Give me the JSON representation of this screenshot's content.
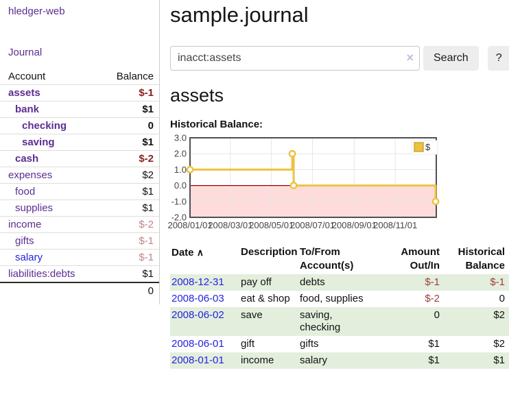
{
  "colors": {
    "link_purple": "#5c2d91",
    "link_blue": "#2323dd",
    "negative_strong": "#8b1d1d",
    "negative_muted": "#c08585",
    "negative_table": "#9e3c3c",
    "row_stripe_green": "#e3eedd",
    "chart_series_gold": "#edc240",
    "chart_negative_fill": "#ffdcdc",
    "chart_zero_line": "#990000",
    "chart_border": "#4f4f4f",
    "chart_grid": "#e6e6e6"
  },
  "sidebar": {
    "brand": "hledger-web",
    "journal_link": "Journal",
    "account_table": {
      "account_header": "Account",
      "balance_header": "Balance",
      "rows": [
        {
          "name": "assets",
          "depth": 1,
          "balance": "$-1",
          "bold": true,
          "negative": "strong"
        },
        {
          "name": "bank",
          "depth": 2,
          "balance": "$1",
          "bold": true
        },
        {
          "name": "checking",
          "depth": 3,
          "balance": "0",
          "bold": true
        },
        {
          "name": "saving",
          "depth": 3,
          "balance": "$1",
          "bold": true
        },
        {
          "name": "cash",
          "depth": 2,
          "balance": "$-2",
          "bold": true,
          "negative": "strong"
        },
        {
          "name": "expenses",
          "depth": 1,
          "balance": "$2"
        },
        {
          "name": "food",
          "depth": 2,
          "balance": "$1"
        },
        {
          "name": "supplies",
          "depth": 2,
          "balance": "$1"
        },
        {
          "name": "income",
          "depth": 1,
          "balance": "$-2",
          "negative": "muted"
        },
        {
          "name": "gifts",
          "depth": 2,
          "balance": "$-1",
          "negative": "muted"
        },
        {
          "name": "salary",
          "depth": 2,
          "balance": "$-1",
          "negative": "muted",
          "unvisited": true
        },
        {
          "name": "liabilities:debts",
          "depth": 1,
          "balance": "$1"
        }
      ],
      "total": "0"
    }
  },
  "main": {
    "title": "sample.journal",
    "search": {
      "value": "inacct:assets",
      "clear_icon": "×",
      "search_button": "Search",
      "help_button": "?"
    },
    "account_heading": "assets",
    "chart_heading": "Historical Balance:"
  },
  "chart_data": {
    "type": "line",
    "title": "Historical Balance",
    "legend": {
      "label": "$",
      "position": "top-right"
    },
    "series": [
      {
        "name": "$",
        "color": "#edc240",
        "step": true,
        "points": [
          [
            "2008-01-01",
            1.0
          ],
          [
            "2008-06-01",
            2.0
          ],
          [
            "2008-06-03",
            0.0
          ],
          [
            "2008-12-31",
            -1.0
          ]
        ]
      }
    ],
    "x_range": [
      "2008-01-01",
      "2009-01-01"
    ],
    "x_ticks": [
      {
        "date": "2008-01-01",
        "label": "2008/01/01"
      },
      {
        "date": "2008-03-01",
        "label": "2008/03/01"
      },
      {
        "date": "2008-05-01",
        "label": "2008/05/01"
      },
      {
        "date": "2008-07-01",
        "label": "2008/07/01"
      },
      {
        "date": "2008-09-01",
        "label": "2008/09/01"
      },
      {
        "date": "2008-11-01",
        "label": "2008/11/01"
      }
    ],
    "ylim": [
      -2.0,
      3.0
    ],
    "y_ticks": [
      3.0,
      2.0,
      1.0,
      0.0,
      -1.0,
      -2.0
    ],
    "grid": true,
    "negative_region_shaded": true
  },
  "register_table": {
    "headers": [
      {
        "label": "Date",
        "sort_icon": "∧"
      },
      {
        "label": "Description"
      },
      {
        "label": "To/From Account(s)"
      },
      {
        "label": "Amount Out/In"
      },
      {
        "label": "Historical Balance"
      }
    ],
    "rows": [
      {
        "date": "2008-12-31",
        "description": "pay off",
        "accounts": "debts",
        "amount": "$-1",
        "amount_negative": true,
        "balance": "$-1",
        "balance_negative": true
      },
      {
        "date": "2008-06-03",
        "description": "eat & shop",
        "accounts": "food, supplies",
        "amount": "$-2",
        "amount_negative": true,
        "balance": "0",
        "balance_negative": false
      },
      {
        "date": "2008-06-02",
        "description": "save",
        "accounts": "saving, checking",
        "amount": "0",
        "amount_negative": false,
        "balance": "$2",
        "balance_negative": false
      },
      {
        "date": "2008-06-01",
        "description": "gift",
        "accounts": "gifts",
        "amount": "$1",
        "amount_negative": false,
        "balance": "$2",
        "balance_negative": false
      },
      {
        "date": "2008-01-01",
        "description": "income",
        "accounts": "salary",
        "amount": "$1",
        "amount_negative": false,
        "balance": "$1",
        "balance_negative": false
      }
    ]
  }
}
